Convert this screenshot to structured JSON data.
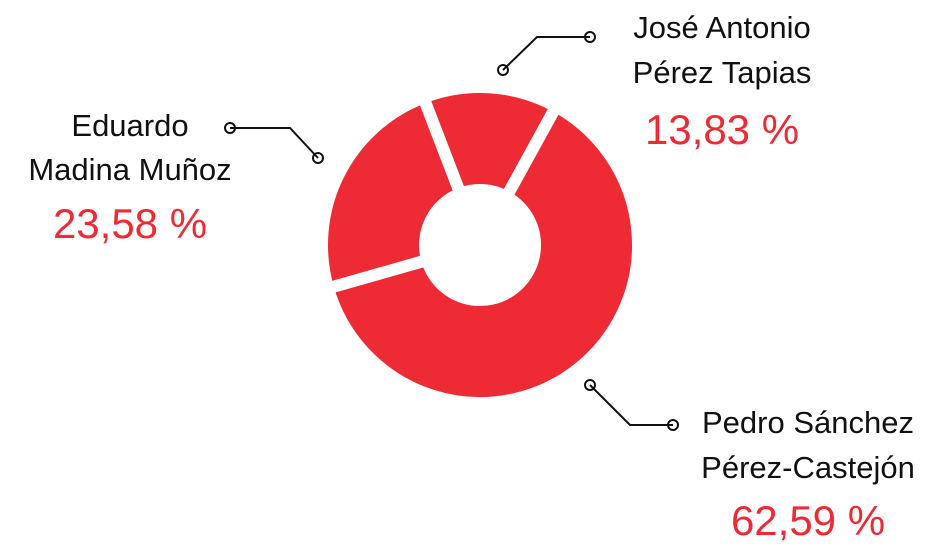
{
  "chart_data": {
    "type": "donut",
    "categories": [
      [
        "José Antonio",
        "Pérez Tapias"
      ],
      [
        "Pedro Sánchez",
        "Pérez-Castejón"
      ],
      [
        "Eduardo",
        "Madina Muñoz"
      ]
    ],
    "values": [
      13.83,
      62.59,
      23.58
    ],
    "value_labels": [
      "13,83 %",
      "62,59 %",
      "23,58 %"
    ],
    "color": "#ee2a35"
  }
}
